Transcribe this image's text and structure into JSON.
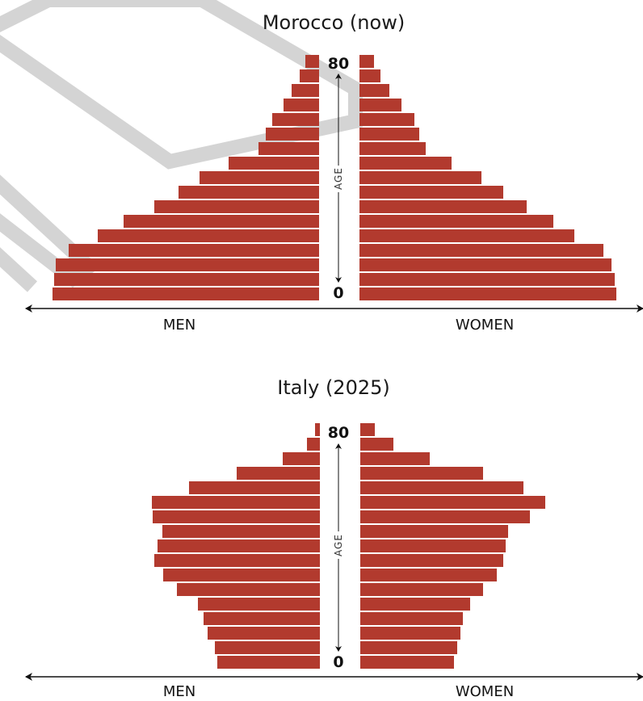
{
  "colors": {
    "bar": "#b23a2e",
    "watermark": "#d4d4d4"
  },
  "chart_data": [
    {
      "type": "bar",
      "title": "Morocco (now)",
      "left_label": "MEN",
      "right_label": "WOMEN",
      "axis_label": "AGE",
      "age_top": "80",
      "age_bottom": "0",
      "xlim": [
        0,
        330
      ],
      "men": [
        330,
        328,
        326,
        310,
        274,
        242,
        204,
        174,
        148,
        112,
        75,
        66,
        58,
        44,
        34,
        24,
        17
      ],
      "women": [
        318,
        316,
        312,
        302,
        266,
        240,
        207,
        178,
        151,
        114,
        82,
        74,
        68,
        52,
        37,
        26,
        18
      ]
    },
    {
      "type": "bar",
      "title": "Italy (2025)",
      "left_label": "MEN",
      "right_label": "WOMEN",
      "axis_label": "AGE",
      "age_top": "80",
      "age_bottom": "0",
      "xlim": [
        0,
        330
      ],
      "men": [
        127,
        130,
        139,
        144,
        151,
        177,
        194,
        205,
        201,
        195,
        207,
        208,
        162,
        103,
        46,
        16,
        6
      ],
      "women": [
        116,
        120,
        124,
        127,
        136,
        152,
        169,
        177,
        180,
        183,
        210,
        229,
        202,
        152,
        86,
        41,
        18
      ]
    }
  ]
}
